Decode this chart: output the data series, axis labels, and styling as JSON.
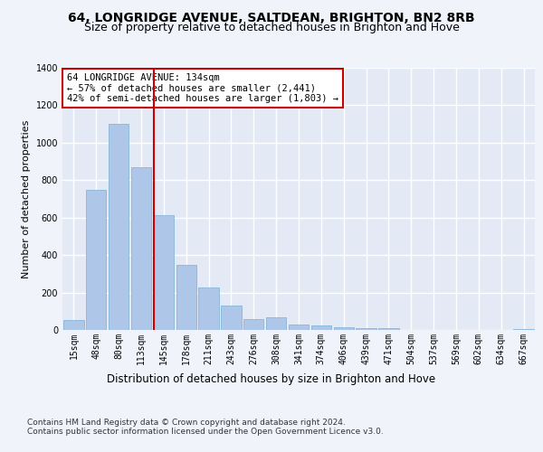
{
  "title1": "64, LONGRIDGE AVENUE, SALTDEAN, BRIGHTON, BN2 8RB",
  "title2": "Size of property relative to detached houses in Brighton and Hove",
  "xlabel": "Distribution of detached houses by size in Brighton and Hove",
  "ylabel": "Number of detached properties",
  "footer1": "Contains HM Land Registry data © Crown copyright and database right 2024.",
  "footer2": "Contains public sector information licensed under the Open Government Licence v3.0.",
  "categories": [
    "15sqm",
    "48sqm",
    "80sqm",
    "113sqm",
    "145sqm",
    "178sqm",
    "211sqm",
    "243sqm",
    "276sqm",
    "308sqm",
    "341sqm",
    "374sqm",
    "406sqm",
    "439sqm",
    "471sqm",
    "504sqm",
    "537sqm",
    "569sqm",
    "602sqm",
    "634sqm",
    "667sqm"
  ],
  "values": [
    55,
    750,
    1100,
    870,
    615,
    350,
    225,
    130,
    60,
    70,
    30,
    25,
    15,
    10,
    10,
    2,
    0,
    0,
    2,
    0,
    5
  ],
  "bar_color": "#aec6e8",
  "bar_edge_color": "#7aafd4",
  "vline_x": 3.57,
  "vline_color": "#cc0000",
  "annotation_text": "64 LONGRIDGE AVENUE: 134sqm\n← 57% of detached houses are smaller (2,441)\n42% of semi-detached houses are larger (1,803) →",
  "annotation_box_color": "#ffffff",
  "annotation_box_edge": "#cc0000",
  "ylim": [
    0,
    1400
  ],
  "bg_color": "#f0f4fa",
  "plot_bg_color": "#e4eaf5",
  "grid_color": "#ffffff",
  "title1_fontsize": 10,
  "title2_fontsize": 9,
  "xlabel_fontsize": 8.5,
  "ylabel_fontsize": 8,
  "tick_fontsize": 7,
  "footer_fontsize": 6.5
}
